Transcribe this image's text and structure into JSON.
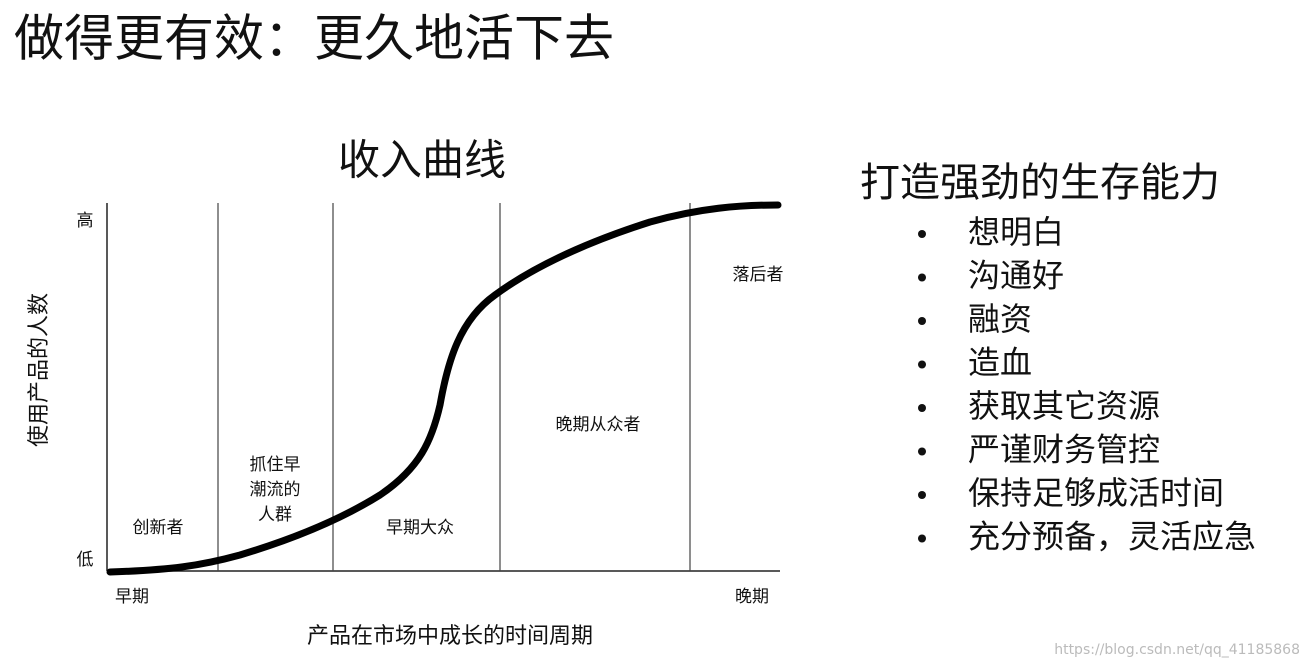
{
  "header": {
    "title": "做得更有效：更久地活下去"
  },
  "diagram": {
    "title": "收入曲线",
    "y_axis": {
      "label": "使用产品的人数",
      "high": "高",
      "low": "低"
    },
    "x_axis": {
      "label": "产品在市场中成长的时间周期",
      "start": "早期",
      "end": "晚期"
    },
    "segments": [
      {
        "lines": [
          "创新者"
        ]
      },
      {
        "lines": [
          "抓住早",
          "潮流的",
          "人群"
        ]
      },
      {
        "lines": [
          "早期大众"
        ]
      },
      {
        "lines": [
          "晚期从众者"
        ]
      },
      {
        "lines": [
          "落后者"
        ]
      }
    ]
  },
  "panel": {
    "title": "打造强劲的生存能力",
    "items": [
      "想明白",
      "沟通好",
      "融资",
      "造血",
      "获取其它资源",
      "严谨财务管控",
      "保持足够成活时间",
      "充分预备，灵活应急"
    ]
  },
  "watermark": "https://blog.csdn.net/qq_41185868"
}
